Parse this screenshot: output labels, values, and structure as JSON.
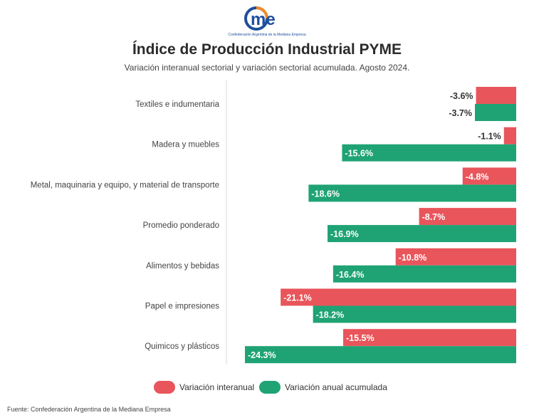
{
  "logo": {
    "text": "Came",
    "subtext": "Confederación Argentina de la Mediana Empresa"
  },
  "header": {
    "title": "Índice de Producción Industrial PYME",
    "subtitle": "Variación interanual sectorial y variación sectorial acumulada. Agosto 2024."
  },
  "colors": {
    "interanual": "#e8555b",
    "acumulada": "#1fa374",
    "logo_blue": "#1f4f9c",
    "logo_orange": "#f28c28"
  },
  "chart_data": {
    "type": "bar",
    "orientation": "horizontal",
    "categories": [
      "Textiles e indumentaria",
      "Madera y muebles",
      "Metal, maquinaria y equipo, y material de transporte",
      "Promedio ponderado",
      "Alimentos y bebidas",
      "Papel e impresiones",
      "Quimicos y plásticos"
    ],
    "series": [
      {
        "name": "Variación interanual",
        "values": [
          -3.6,
          -1.1,
          -4.8,
          -8.7,
          -10.8,
          -21.1,
          -15.5
        ],
        "labels": [
          "-3.6%",
          "-1.1%",
          "-4.8%",
          "-8.7%",
          "-10.8%",
          "-21.1%",
          "-15.5%"
        ]
      },
      {
        "name": "Variación anual acumulada",
        "values": [
          -3.7,
          -15.6,
          -18.6,
          -16.9,
          -16.4,
          -18.2,
          -24.3
        ],
        "labels": [
          "-3.7%",
          "-15.6%",
          "-18.6%",
          "-16.9%",
          "-16.4%",
          "-18.2%",
          "-24.3%"
        ]
      }
    ],
    "xlim": [
      -24.3,
      0
    ],
    "legend": "bottom",
    "grid": false
  },
  "legend": {
    "interanual_label": "Variación interanual",
    "acumulada_label": "Variación anual acumulada"
  },
  "footer": {
    "source": "Fuente: Confederación Argentina de la Mediana Empresa"
  }
}
